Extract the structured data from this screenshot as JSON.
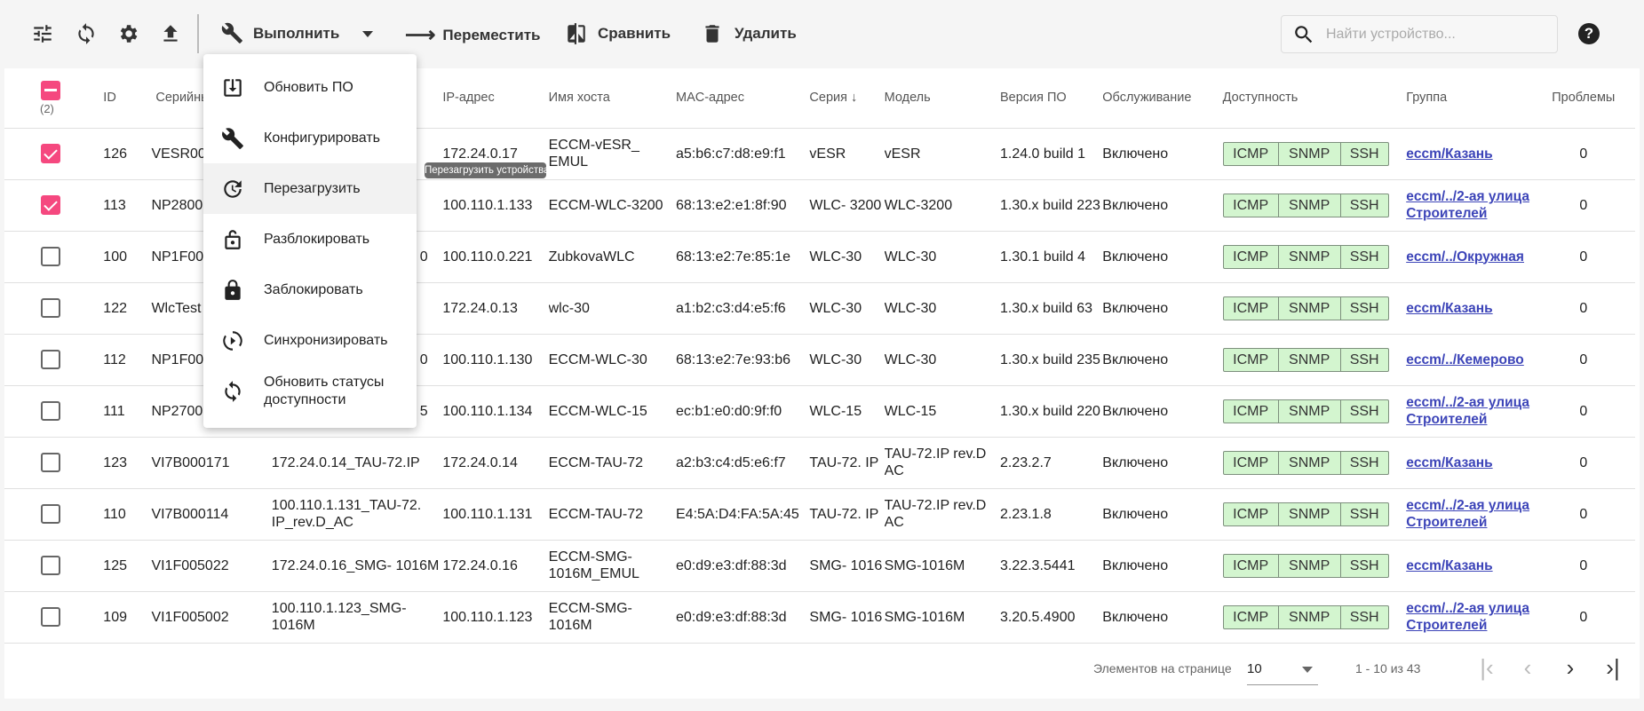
{
  "toolbar": {
    "execute_label": "Выполнить",
    "move_label": "Переместить",
    "compare_label": "Сравнить",
    "delete_label": "Удалить",
    "search_placeholder": "Найти устройство..."
  },
  "table": {
    "headers": {
      "id": "ID",
      "serial": "Серийный номер",
      "ip": "IP-адрес",
      "host": "Имя хоста",
      "mac": "MAC-адрес",
      "series": "Серия",
      "model": "Модель",
      "version": "Версия ПО",
      "maintenance": "Обслуживание",
      "availability": "Доступность",
      "group": "Группа",
      "problems": "Проблемы"
    },
    "selected_count": "(2)",
    "rows": [
      {
        "checked": true,
        "id": "126",
        "serial": "VESR00",
        "name": "",
        "ip": "172.24.0.17",
        "host": "ECCM-vESR_ EMUL",
        "mac": "a5:b6:c7:d8:e9:f1",
        "series": "vESR",
        "model": "vESR",
        "version": "1.24.0 build 1",
        "maintenance": "Включено",
        "group": "eccm/Казань",
        "problems": "0"
      },
      {
        "checked": true,
        "id": "113",
        "serial": "NP2800",
        "name": "",
        "ip": "100.110.1.133",
        "host": "ECCM-WLC-3200",
        "mac": "68:13:e2:e1:8f:90",
        "series": "WLC- 3200",
        "model": "WLC-3200",
        "version": "1.30.x build 223",
        "maintenance": "Включено",
        "group": "eccm/../2-ая улица Строителей",
        "problems": "0"
      },
      {
        "checked": false,
        "id": "100",
        "serial": "NP1F00",
        "name": "0",
        "ip": "100.110.0.221",
        "host": "ZubkovaWLC",
        "mac": "68:13:e2:7e:85:1e",
        "series": "WLC-30",
        "model": "WLC-30",
        "version": "1.30.1 build 4",
        "maintenance": "Включено",
        "group": "eccm/../Окружная",
        "problems": "0"
      },
      {
        "checked": false,
        "id": "122",
        "serial": "WlcTest",
        "name": "",
        "ip": "172.24.0.13",
        "host": "wlc-30",
        "mac": "a1:b2:c3:d4:e5:f6",
        "series": "WLC-30",
        "model": "WLC-30",
        "version": "1.30.x build 63",
        "maintenance": "Включено",
        "group": "eccm/Казань",
        "problems": "0"
      },
      {
        "checked": false,
        "id": "112",
        "serial": "NP1F00",
        "name": "0",
        "ip": "100.110.1.130",
        "host": "ECCM-WLC-30",
        "mac": "68:13:e2:7e:93:b6",
        "series": "WLC-30",
        "model": "WLC-30",
        "version": "1.30.x build 235",
        "maintenance": "Включено",
        "group": "eccm/../Кемерово",
        "problems": "0"
      },
      {
        "checked": false,
        "id": "111",
        "serial": "NP2700",
        "name": "5",
        "ip": "100.110.1.134",
        "host": "ECCM-WLC-15",
        "mac": "ec:b1:e0:d0:9f:f0",
        "series": "WLC-15",
        "model": "WLC-15",
        "version": "1.30.x build 220",
        "maintenance": "Включено",
        "group": "eccm/../2-ая улица Строителей",
        "problems": "0"
      },
      {
        "checked": false,
        "id": "123",
        "serial": "VI7B000171",
        "name": "172.24.0.14_TAU-72.IP",
        "ip": "172.24.0.14",
        "host": "ECCM-TAU-72",
        "mac": "a2:b3:c4:d5:e6:f7",
        "series": "TAU-72. IP",
        "model": "TAU-72.IP rev.D AC",
        "version": "2.23.2.7",
        "maintenance": "Включено",
        "group": "eccm/Казань",
        "problems": "0"
      },
      {
        "checked": false,
        "id": "110",
        "serial": "VI7B000114",
        "name": "100.110.1.131_TAU-72. IP_rev.D_AC",
        "ip": "100.110.1.131",
        "host": "ECCM-TAU-72",
        "mac": "E4:5A:D4:FA:5A:45",
        "series": "TAU-72. IP",
        "model": "TAU-72.IP rev.D AC",
        "version": "2.23.1.8",
        "maintenance": "Включено",
        "group": "eccm/../2-ая улица Строителей",
        "problems": "0"
      },
      {
        "checked": false,
        "id": "125",
        "serial": "VI1F005022",
        "name": "172.24.0.16_SMG- 1016M",
        "ip": "172.24.0.16",
        "host": "ECCM-SMG- 1016M_EMUL",
        "mac": "e0:d9:e3:df:88:3d",
        "series": "SMG- 1016",
        "model": "SMG-1016M",
        "version": "3.22.3.5441",
        "maintenance": "Включено",
        "group": "eccm/Казань",
        "problems": "0"
      },
      {
        "checked": false,
        "id": "109",
        "serial": "VI1F005002",
        "name": "100.110.1.123_SMG- 1016M",
        "ip": "100.110.1.123",
        "host": "ECCM-SMG- 1016M",
        "mac": "e0:d9:e3:df:88:3d",
        "series": "SMG- 1016",
        "model": "SMG-1016M",
        "version": "3.20.5.4900",
        "maintenance": "Включено",
        "group": "eccm/../2-ая улица Строителей",
        "problems": "0"
      }
    ],
    "availability_protocols": [
      "ICMP",
      "SNMP",
      "SSH"
    ]
  },
  "menu": {
    "items": [
      {
        "label": "Обновить ПО",
        "icon": "firmware-update-icon"
      },
      {
        "label": "Конфигурировать",
        "icon": "wrench-icon"
      },
      {
        "label": "Перезагрузить",
        "icon": "restart-icon",
        "highlighted": true
      },
      {
        "label": "Разблокировать",
        "icon": "unlock-icon"
      },
      {
        "label": "Заблокировать",
        "icon": "lock-icon"
      },
      {
        "label": "Синхронизировать",
        "icon": "sync-icon"
      },
      {
        "label": "Обновить статусы доступности",
        "icon": "refresh-icon"
      }
    ]
  },
  "tooltip": "Перезагрузить устройства",
  "footer": {
    "page_size_label": "Элементов на странице",
    "page_size": "10",
    "range": "1 - 10 из 43"
  },
  "colors": {
    "checkbox": "#f5487f",
    "availability_bg": "#d3f5cf",
    "link": "#3c44b8"
  }
}
